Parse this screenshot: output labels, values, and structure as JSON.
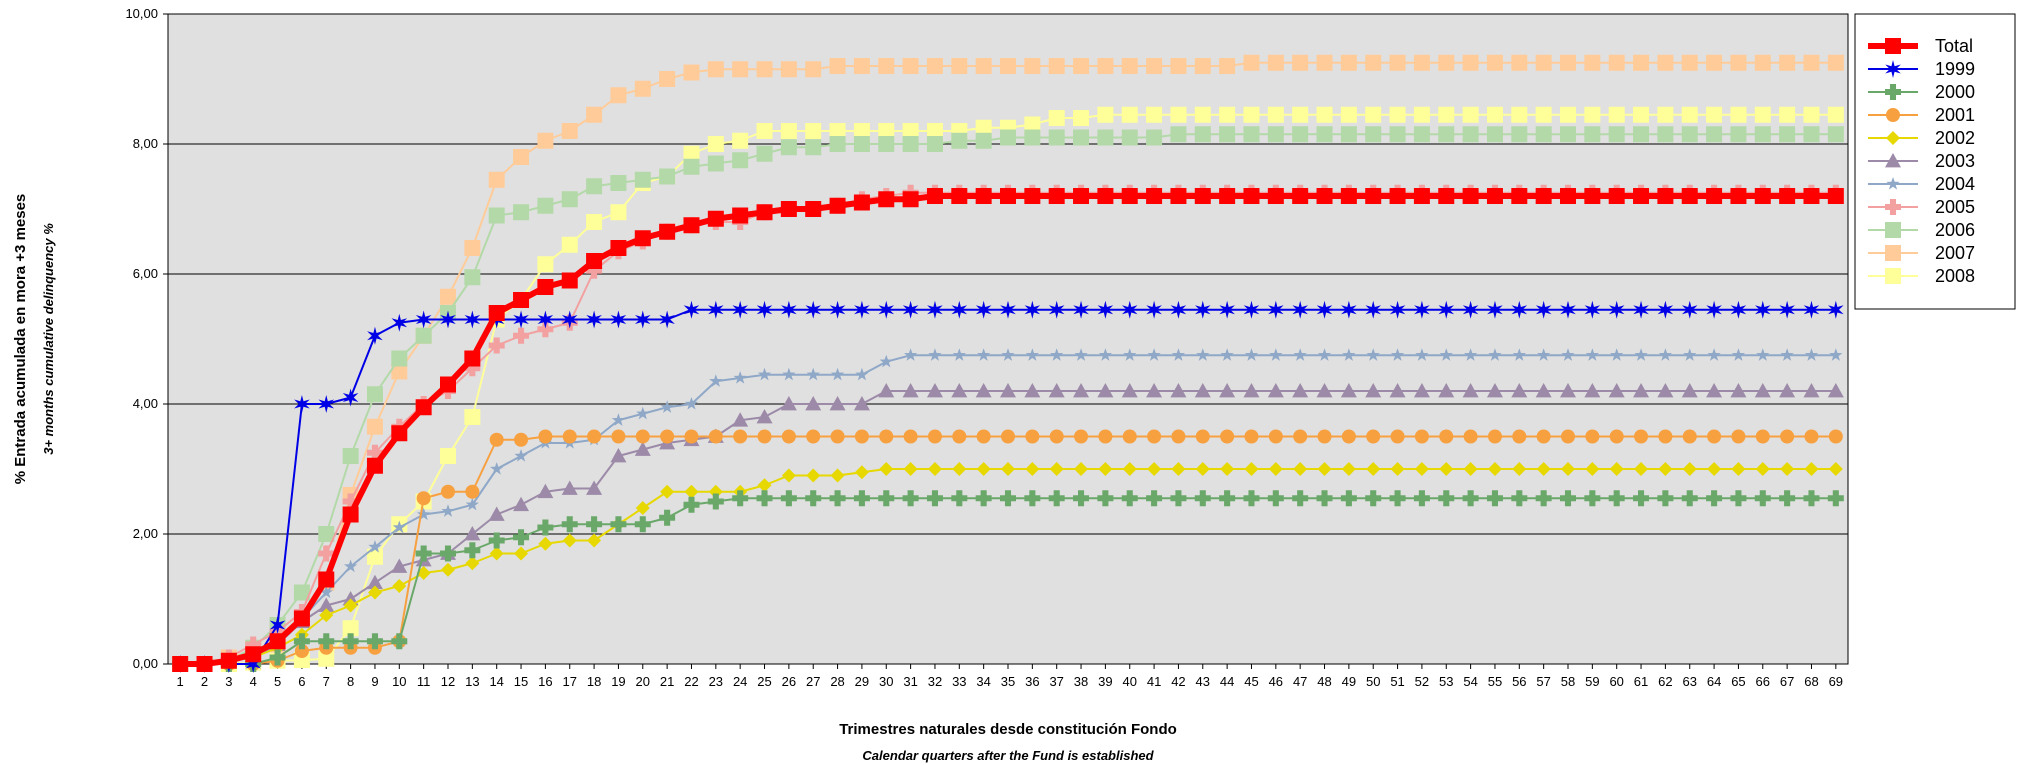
{
  "chart_data": {
    "type": "line",
    "xlabel": "Trimestres naturales desde constitución Fondo",
    "xlabel_sub": "Calendar quarters after the Fund is established",
    "ylabel": "% Entrada acumulada en mora +3 meses",
    "ylabel_sub": "3+ months cumulative delinquency %",
    "x": [
      1,
      2,
      3,
      4,
      5,
      6,
      7,
      8,
      9,
      10,
      11,
      12,
      13,
      14,
      15,
      16,
      17,
      18,
      19,
      20,
      21,
      22,
      23,
      24,
      25,
      26,
      27,
      28,
      29,
      30,
      31,
      32,
      33,
      34,
      35,
      36,
      37,
      38,
      39,
      40,
      41,
      42,
      43,
      44,
      45,
      46,
      47,
      48,
      49,
      50,
      51,
      52,
      53,
      54,
      55,
      56,
      57,
      58,
      59,
      60,
      61,
      62,
      63,
      64,
      65,
      66,
      67,
      68,
      69
    ],
    "ylim": [
      0,
      10
    ],
    "yticks": [
      "0,00",
      "2,00",
      "4,00",
      "6,00",
      "8,00",
      "10,00"
    ],
    "grid": true,
    "legend_position": "right",
    "series": [
      {
        "name": "2008",
        "color": "#ffff99",
        "marker": "square",
        "values": [
          0,
          0,
          0,
          0.02,
          0.05,
          0.06,
          0.08,
          0.55,
          1.65,
          2.15,
          2.5,
          3.2,
          3.8,
          5.3,
          5.6,
          6.15,
          6.45,
          6.8,
          6.95,
          7.4,
          7.5,
          7.85,
          8.0,
          8.05,
          8.2,
          8.2,
          8.2,
          8.2,
          8.2,
          8.2,
          8.2,
          8.2,
          8.2,
          8.25,
          8.25,
          8.3,
          8.4,
          8.4,
          8.45,
          8.45,
          8.45,
          8.45,
          8.45,
          8.45,
          8.45,
          8.45,
          8.45,
          8.45,
          8.45,
          8.45,
          8.45,
          8.45,
          8.45,
          8.45,
          8.45,
          8.45,
          8.45,
          8.45,
          8.45,
          8.45,
          8.45,
          8.45,
          8.45,
          8.45,
          8.45,
          8.45,
          8.45,
          8.45,
          8.45
        ]
      },
      {
        "name": "2007",
        "color": "#ffcc99",
        "marker": "square",
        "values": [
          0,
          0,
          0.1,
          0.2,
          0.3,
          0.7,
          1.25,
          2.6,
          3.65,
          4.5,
          5.05,
          5.65,
          6.4,
          7.45,
          7.8,
          8.05,
          8.2,
          8.45,
          8.75,
          8.85,
          9.0,
          9.1,
          9.15,
          9.15,
          9.15,
          9.15,
          9.15,
          9.2,
          9.2,
          9.2,
          9.2,
          9.2,
          9.2,
          9.2,
          9.2,
          9.2,
          9.2,
          9.2,
          9.2,
          9.2,
          9.2,
          9.2,
          9.2,
          9.2,
          9.25,
          9.25,
          9.25,
          9.25,
          9.25,
          9.25,
          9.25,
          9.25,
          9.25,
          9.25,
          9.25,
          9.25,
          9.25,
          9.25,
          9.25,
          9.25,
          9.25,
          9.25,
          9.25,
          9.25,
          9.25,
          9.25,
          9.25,
          9.25,
          9.25
        ]
      },
      {
        "name": "2006",
        "color": "#b3d9a8",
        "marker": "square",
        "values": [
          0,
          0,
          0.05,
          0.25,
          0.6,
          1.1,
          2.0,
          3.2,
          4.15,
          4.7,
          5.05,
          5.4,
          5.95,
          6.9,
          6.95,
          7.05,
          7.15,
          7.35,
          7.4,
          7.45,
          7.5,
          7.65,
          7.7,
          7.75,
          7.85,
          7.95,
          7.95,
          8.0,
          8.0,
          8.0,
          8.0,
          8.0,
          8.05,
          8.05,
          8.1,
          8.1,
          8.1,
          8.1,
          8.1,
          8.1,
          8.1,
          8.15,
          8.15,
          8.15,
          8.15,
          8.15,
          8.15,
          8.15,
          8.15,
          8.15,
          8.15,
          8.15,
          8.15,
          8.15,
          8.15,
          8.15,
          8.15,
          8.15,
          8.15,
          8.15,
          8.15,
          8.15,
          8.15,
          8.15,
          8.15,
          8.15,
          8.15,
          8.15,
          8.15
        ]
      },
      {
        "name": "2005",
        "color": "#f2a0a0",
        "marker": "cross",
        "values": [
          0,
          0,
          0.1,
          0.3,
          0.5,
          0.8,
          1.7,
          2.5,
          3.25,
          3.65,
          4.0,
          4.2,
          4.55,
          4.9,
          5.05,
          5.15,
          5.25,
          6.05,
          6.35,
          6.5,
          6.65,
          6.75,
          6.8,
          6.8,
          6.95,
          7.0,
          7.0,
          7.05,
          7.15,
          7.2,
          7.25,
          7.25,
          7.25,
          7.25,
          7.25,
          7.25,
          7.25,
          7.25,
          7.25,
          7.25,
          7.25,
          7.25,
          7.25,
          7.25,
          7.25,
          7.25,
          7.25,
          7.25,
          7.25,
          7.25,
          7.25,
          7.25,
          7.25,
          7.25,
          7.25,
          7.25,
          7.25,
          7.25,
          7.25,
          7.25,
          7.25,
          7.25,
          7.25,
          7.25,
          7.25,
          7.25,
          7.25,
          7.25,
          7.25
        ]
      },
      {
        "name": "2004",
        "color": "#8fa8c8",
        "marker": "star",
        "values": [
          0,
          0,
          0.05,
          0.1,
          0.3,
          0.7,
          1.1,
          1.5,
          1.8,
          2.1,
          2.3,
          2.35,
          2.45,
          3.0,
          3.2,
          3.4,
          3.4,
          3.45,
          3.75,
          3.85,
          3.95,
          4.0,
          4.35,
          4.4,
          4.45,
          4.45,
          4.45,
          4.45,
          4.45,
          4.65,
          4.75,
          4.75,
          4.75,
          4.75,
          4.75,
          4.75,
          4.75,
          4.75,
          4.75,
          4.75,
          4.75,
          4.75,
          4.75,
          4.75,
          4.75,
          4.75,
          4.75,
          4.75,
          4.75,
          4.75,
          4.75,
          4.75,
          4.75,
          4.75,
          4.75,
          4.75,
          4.75,
          4.75,
          4.75,
          4.75,
          4.75,
          4.75,
          4.75,
          4.75,
          4.75,
          4.75,
          4.75,
          4.75,
          4.75
        ]
      },
      {
        "name": "2003",
        "color": "#9c8aa8",
        "marker": "triangle",
        "values": [
          0,
          0,
          0.05,
          0.1,
          0.3,
          0.65,
          0.9,
          1.0,
          1.25,
          1.5,
          1.6,
          1.7,
          2.0,
          2.3,
          2.45,
          2.65,
          2.7,
          2.7,
          3.2,
          3.3,
          3.4,
          3.45,
          3.5,
          3.75,
          3.8,
          4.0,
          4.0,
          4.0,
          4.0,
          4.2,
          4.2,
          4.2,
          4.2,
          4.2,
          4.2,
          4.2,
          4.2,
          4.2,
          4.2,
          4.2,
          4.2,
          4.2,
          4.2,
          4.2,
          4.2,
          4.2,
          4.2,
          4.2,
          4.2,
          4.2,
          4.2,
          4.2,
          4.2,
          4.2,
          4.2,
          4.2,
          4.2,
          4.2,
          4.2,
          4.2,
          4.2,
          4.2,
          4.2,
          4.2,
          4.2,
          4.2,
          4.2,
          4.2,
          4.2
        ]
      },
      {
        "name": "2002",
        "color": "#e6d800",
        "marker": "diamond",
        "values": [
          0,
          0,
          0.05,
          0.1,
          0.25,
          0.45,
          0.75,
          0.9,
          1.1,
          1.2,
          1.4,
          1.45,
          1.55,
          1.7,
          1.7,
          1.85,
          1.9,
          1.9,
          2.15,
          2.4,
          2.65,
          2.65,
          2.65,
          2.65,
          2.75,
          2.9,
          2.9,
          2.9,
          2.95,
          3.0,
          3.0,
          3.0,
          3.0,
          3.0,
          3.0,
          3.0,
          3.0,
          3.0,
          3.0,
          3.0,
          3.0,
          3.0,
          3.0,
          3.0,
          3.0,
          3.0,
          3.0,
          3.0,
          3.0,
          3.0,
          3.0,
          3.0,
          3.0,
          3.0,
          3.0,
          3.0,
          3.0,
          3.0,
          3.0,
          3.0,
          3.0,
          3.0,
          3.0,
          3.0,
          3.0,
          3.0,
          3.0,
          3.0,
          3.0
        ]
      },
      {
        "name": "2001",
        "color": "#f7a040",
        "marker": "circle",
        "values": [
          0,
          0,
          0,
          0,
          0.05,
          0.2,
          0.25,
          0.25,
          0.25,
          0.35,
          2.55,
          2.65,
          2.65,
          3.45,
          3.45,
          3.5,
          3.5,
          3.5,
          3.5,
          3.5,
          3.5,
          3.5,
          3.5,
          3.5,
          3.5,
          3.5,
          3.5,
          3.5,
          3.5,
          3.5,
          3.5,
          3.5,
          3.5,
          3.5,
          3.5,
          3.5,
          3.5,
          3.5,
          3.5,
          3.5,
          3.5,
          3.5,
          3.5,
          3.5,
          3.5,
          3.5,
          3.5,
          3.5,
          3.5,
          3.5,
          3.5,
          3.5,
          3.5,
          3.5,
          3.5,
          3.5,
          3.5,
          3.5,
          3.5,
          3.5,
          3.5,
          3.5,
          3.5,
          3.5,
          3.5,
          3.5,
          3.5,
          3.5,
          3.5
        ]
      },
      {
        "name": "2000",
        "color": "#6aa86a",
        "marker": "plus",
        "values": [
          0,
          0,
          0,
          0,
          0.1,
          0.35,
          0.35,
          0.35,
          0.35,
          0.35,
          1.7,
          1.7,
          1.75,
          1.9,
          1.95,
          2.1,
          2.15,
          2.15,
          2.15,
          2.15,
          2.25,
          2.45,
          2.5,
          2.55,
          2.55,
          2.55,
          2.55,
          2.55,
          2.55,
          2.55,
          2.55,
          2.55,
          2.55,
          2.55,
          2.55,
          2.55,
          2.55,
          2.55,
          2.55,
          2.55,
          2.55,
          2.55,
          2.55,
          2.55,
          2.55,
          2.55,
          2.55,
          2.55,
          2.55,
          2.55,
          2.55,
          2.55,
          2.55,
          2.55,
          2.55,
          2.55,
          2.55,
          2.55,
          2.55,
          2.55,
          2.55,
          2.55,
          2.55,
          2.55,
          2.55,
          2.55,
          2.55,
          2.55,
          2.55
        ]
      },
      {
        "name": "1999",
        "color": "#0000e6",
        "marker": "star6",
        "values": [
          0,
          0,
          0,
          0,
          0.6,
          4.0,
          4.0,
          4.1,
          5.05,
          5.25,
          5.3,
          5.3,
          5.3,
          5.3,
          5.3,
          5.3,
          5.3,
          5.3,
          5.3,
          5.3,
          5.3,
          5.45,
          5.45,
          5.45,
          5.45,
          5.45,
          5.45,
          5.45,
          5.45,
          5.45,
          5.45,
          5.45,
          5.45,
          5.45,
          5.45,
          5.45,
          5.45,
          5.45,
          5.45,
          5.45,
          5.45,
          5.45,
          5.45,
          5.45,
          5.45,
          5.45,
          5.45,
          5.45,
          5.45,
          5.45,
          5.45,
          5.45,
          5.45,
          5.45,
          5.45,
          5.45,
          5.45,
          5.45,
          5.45,
          5.45,
          5.45,
          5.45,
          5.45,
          5.45,
          5.45,
          5.45,
          5.45,
          5.45,
          5.45
        ]
      },
      {
        "name": "Total",
        "color": "#ff0000",
        "marker": "square",
        "values": [
          0,
          0,
          0.05,
          0.15,
          0.35,
          0.7,
          1.3,
          2.3,
          3.05,
          3.55,
          3.95,
          4.3,
          4.7,
          5.4,
          5.6,
          5.8,
          5.9,
          6.2,
          6.4,
          6.55,
          6.65,
          6.75,
          6.85,
          6.9,
          6.95,
          7.0,
          7.0,
          7.05,
          7.1,
          7.15,
          7.15,
          7.2,
          7.2,
          7.2,
          7.2,
          7.2,
          7.2,
          7.2,
          7.2,
          7.2,
          7.2,
          7.2,
          7.2,
          7.2,
          7.2,
          7.2,
          7.2,
          7.2,
          7.2,
          7.2,
          7.2,
          7.2,
          7.2,
          7.2,
          7.2,
          7.2,
          7.2,
          7.2,
          7.2,
          7.2,
          7.2,
          7.2,
          7.2,
          7.2,
          7.2,
          7.2,
          7.2,
          7.2,
          7.2
        ]
      }
    ],
    "legend_order": [
      "Total",
      "1999",
      "2000",
      "2001",
      "2002",
      "2003",
      "2004",
      "2005",
      "2006",
      "2007",
      "2008"
    ]
  }
}
